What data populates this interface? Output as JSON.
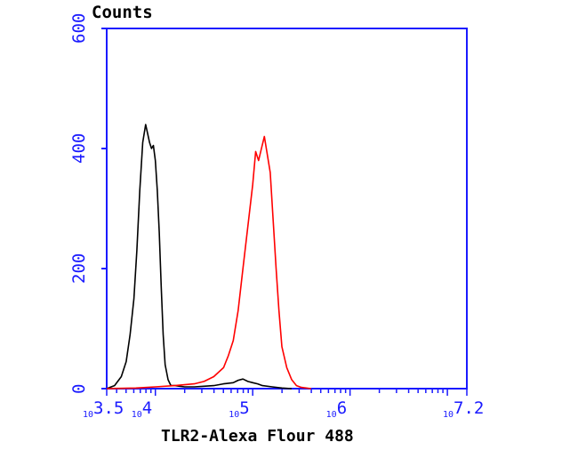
{
  "chart_data": {
    "type": "line",
    "ylabel": "Counts",
    "xlabel": "TLR2-Alexa Flour 488",
    "xscale": "log",
    "xlim": [
      3.5,
      7.2
    ],
    "ylim": [
      0,
      600
    ],
    "x_ticks": [
      {
        "base": "10",
        "exp": "3.5",
        "value": 3.5
      },
      {
        "base": "10",
        "exp": "4",
        "value": 4
      },
      {
        "base": "10",
        "exp": "5",
        "value": 5
      },
      {
        "base": "10",
        "exp": "6",
        "value": 6
      },
      {
        "base": "10",
        "exp": "7.2",
        "value": 7.2
      }
    ],
    "y_ticks": [
      "0",
      "200",
      "400",
      "600"
    ],
    "series": [
      {
        "color": "#000000",
        "x": [
          3.5,
          3.58,
          3.65,
          3.7,
          3.74,
          3.78,
          3.81,
          3.84,
          3.87,
          3.9,
          3.92,
          3.94,
          3.96,
          3.98,
          4.0,
          4.02,
          4.04,
          4.06,
          4.08,
          4.1,
          4.13,
          4.16,
          4.2,
          4.25,
          4.3,
          4.4,
          4.5,
          4.6,
          4.7,
          4.8,
          4.85,
          4.9,
          4.95,
          5.0,
          5.05,
          5.1,
          5.2,
          5.3,
          5.4
        ],
        "y": [
          0,
          5,
          20,
          45,
          90,
          150,
          230,
          330,
          410,
          440,
          425,
          410,
          400,
          405,
          380,
          330,
          260,
          170,
          90,
          40,
          15,
          5,
          5,
          4,
          3,
          3,
          4,
          5,
          8,
          10,
          14,
          16,
          12,
          10,
          8,
          5,
          3,
          1,
          0
        ]
      },
      {
        "color": "#ff0000",
        "x": [
          3.5,
          3.8,
          4.0,
          4.2,
          4.4,
          4.5,
          4.6,
          4.7,
          4.75,
          4.8,
          4.85,
          4.9,
          4.95,
          5.0,
          5.03,
          5.06,
          5.09,
          5.12,
          5.15,
          5.18,
          5.21,
          5.24,
          5.27,
          5.3,
          5.35,
          5.4,
          5.45,
          5.5,
          5.6
        ],
        "y": [
          0,
          1,
          3,
          5,
          8,
          12,
          20,
          35,
          55,
          80,
          130,
          200,
          270,
          340,
          395,
          380,
          400,
          420,
          390,
          360,
          280,
          200,
          130,
          70,
          35,
          15,
          5,
          2,
          0
        ]
      }
    ]
  }
}
